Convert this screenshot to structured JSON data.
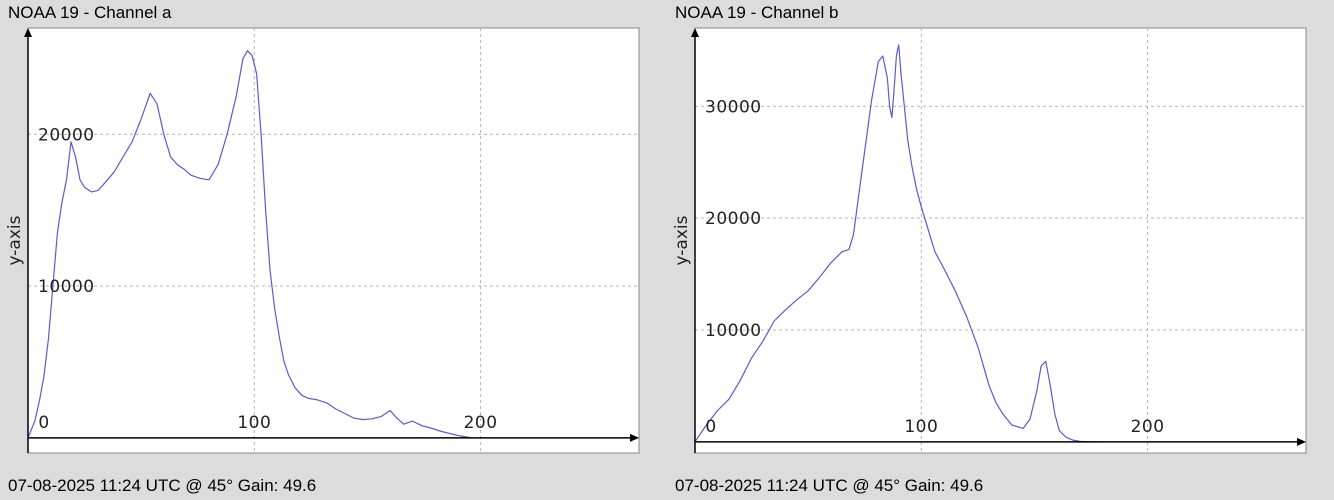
{
  "colors": {
    "background": "#dcdcdc",
    "plot_background": "#ffffff",
    "grid": "#b4b4b4",
    "axis": "#000000",
    "series": "#5a5ad2"
  },
  "chart_data": [
    {
      "type": "line",
      "title": "NOAA 19 - Channel a",
      "footer": "07-08-2025 11:24 UTC @ 45° Gain: 49.6",
      "xlabel": "",
      "ylabel": "y-axis",
      "xlim": [
        0,
        270
      ],
      "ylim": [
        -1000,
        27000
      ],
      "x_ticks": [
        0,
        100,
        200
      ],
      "x_tick_labels": [
        "0",
        "100",
        "200"
      ],
      "y_ticks": [
        10000,
        20000
      ],
      "y_tick_labels": [
        "10000",
        "20000"
      ],
      "grid": true,
      "series": [
        {
          "x": [
            0,
            3,
            5,
            7,
            9,
            11,
            13,
            15,
            17,
            19,
            21,
            23,
            25,
            28,
            31,
            34,
            38,
            42,
            46,
            50,
            54,
            57,
            60,
            63,
            66,
            69,
            72,
            76,
            80,
            84,
            88,
            92,
            95,
            97,
            99,
            101,
            103,
            105,
            107,
            109,
            111,
            113,
            115,
            118,
            121,
            124,
            128,
            132,
            136,
            140,
            144,
            148,
            152,
            156,
            160,
            163,
            166,
            170,
            174,
            178,
            182,
            186,
            190,
            194,
            196
          ],
          "values": [
            0,
            1100,
            2400,
            4000,
            6500,
            10000,
            13500,
            15500,
            17000,
            19500,
            18500,
            17000,
            16500,
            16200,
            16300,
            16800,
            17500,
            18500,
            19500,
            21000,
            22700,
            22000,
            20000,
            18500,
            18000,
            17700,
            17300,
            17100,
            17000,
            18000,
            20000,
            22500,
            25000,
            25500,
            25200,
            24000,
            20000,
            15000,
            11000,
            8500,
            6700,
            5100,
            4200,
            3300,
            2800,
            2600,
            2500,
            2300,
            1900,
            1600,
            1300,
            1200,
            1250,
            1400,
            1800,
            1300,
            900,
            1100,
            800,
            650,
            450,
            300,
            150,
            50,
            0
          ]
        }
      ]
    },
    {
      "type": "line",
      "title": "NOAA 19 - Channel b",
      "footer": "07-08-2025 11:24 UTC @ 45° Gain: 49.6",
      "xlabel": "",
      "ylabel": "y-axis",
      "xlim": [
        0,
        270
      ],
      "ylim": [
        -1000,
        37000
      ],
      "x_ticks": [
        0,
        100,
        200
      ],
      "x_tick_labels": [
        "0",
        "100",
        "200"
      ],
      "y_ticks": [
        10000,
        20000,
        30000
      ],
      "y_tick_labels": [
        "10000",
        "20000",
        "30000"
      ],
      "grid": true,
      "series": [
        {
          "x": [
            0,
            5,
            10,
            15,
            20,
            25,
            30,
            35,
            40,
            45,
            50,
            55,
            60,
            65,
            68,
            70,
            72,
            75,
            78,
            81,
            83,
            85,
            86,
            87,
            88,
            89,
            90,
            91,
            92,
            94,
            96,
            98,
            100,
            103,
            106,
            110,
            115,
            120,
            125,
            130,
            133,
            136,
            140,
            145,
            148,
            151,
            153,
            155,
            157,
            159,
            161,
            164,
            167,
            170,
            175,
            180
          ],
          "values": [
            0,
            1500,
            2800,
            3800,
            5500,
            7500,
            9000,
            10800,
            11800,
            12700,
            13500,
            14700,
            16000,
            17000,
            17200,
            18500,
            21500,
            26000,
            30500,
            34000,
            34500,
            32500,
            30000,
            29000,
            31500,
            34500,
            35500,
            33000,
            31000,
            27000,
            24500,
            22500,
            21000,
            19000,
            17000,
            15500,
            13500,
            11200,
            8500,
            5000,
            3500,
            2500,
            1500,
            1200,
            2000,
            4500,
            6800,
            7200,
            5000,
            2500,
            1000,
            400,
            150,
            50,
            0,
            0
          ]
        }
      ]
    }
  ]
}
